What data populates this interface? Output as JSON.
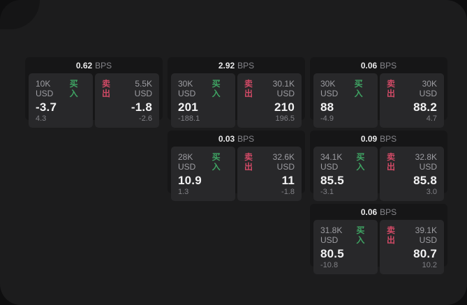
{
  "labels": {
    "bps_unit": "BPS",
    "buy": "买入",
    "sell": "卖出"
  },
  "colors": {
    "buy_green": "#3fa463",
    "sell_red": "#d24a66",
    "panel_bg": "#28282a",
    "card_bg": "#161617",
    "page_bg": "#1c1c1d"
  },
  "cards": [
    {
      "row": 1,
      "col": 1,
      "bps": "0.62",
      "buy": {
        "amount": "10K USD",
        "price": "-3.7",
        "delta": "4.3"
      },
      "sell": {
        "amount": "5.5K USD",
        "price": "-1.8",
        "delta": "-2.6"
      }
    },
    {
      "row": 1,
      "col": 2,
      "bps": "2.92",
      "buy": {
        "amount": "30K USD",
        "price": "201",
        "delta": "-188.1"
      },
      "sell": {
        "amount": "30.1K USD",
        "price": "210",
        "delta": "196.5"
      }
    },
    {
      "row": 1,
      "col": 3,
      "bps": "0.06",
      "buy": {
        "amount": "30K USD",
        "price": "88",
        "delta": "-4.9"
      },
      "sell": {
        "amount": "30K USD",
        "price": "88.2",
        "delta": "4.7"
      }
    },
    {
      "row": 2,
      "col": 2,
      "bps": "0.03",
      "buy": {
        "amount": "28K USD",
        "price": "10.9",
        "delta": "1.3"
      },
      "sell": {
        "amount": "32.6K USD",
        "price": "11",
        "delta": "-1.8"
      }
    },
    {
      "row": 2,
      "col": 3,
      "bps": "0.09",
      "buy": {
        "amount": "34.1K USD",
        "price": "85.5",
        "delta": "-3.1"
      },
      "sell": {
        "amount": "32.8K USD",
        "price": "85.8",
        "delta": "3.0"
      }
    },
    {
      "row": 3,
      "col": 3,
      "bps": "0.06",
      "buy": {
        "amount": "31.8K USD",
        "price": "80.5",
        "delta": "-10.8"
      },
      "sell": {
        "amount": "39.1K USD",
        "price": "80.7",
        "delta": "10.2"
      }
    }
  ]
}
